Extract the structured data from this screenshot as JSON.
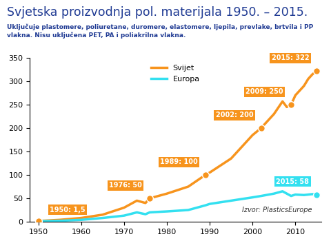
{
  "chart_data": {
    "type": "line",
    "title": "Svjetska proizvodnja pol. materijala 1950. – 2015.",
    "subtitle": "Uključuje plastomere, poliuretane, duromere, elastomere, ljepila, prevlake, brtvila i PP vlakna. Nisu uključena PET, PA i poliakrilna vlakna.",
    "source": "Izvor: PlasticsEurope",
    "x": [
      1950,
      1955,
      1960,
      1965,
      1970,
      1973,
      1975,
      1976,
      1980,
      1985,
      1989,
      1990,
      1995,
      2000,
      2002,
      2005,
      2007,
      2008,
      2009,
      2010,
      2012,
      2013,
      2014,
      2015
    ],
    "series": [
      {
        "name": "Svijet",
        "color": "#f7941d",
        "marker": "none",
        "line_style": "solid",
        "values": [
          1.5,
          4,
          8,
          15,
          30,
          45,
          40,
          50,
          60,
          75,
          100,
          105,
          135,
          185,
          200,
          230,
          257,
          245,
          250,
          270,
          290,
          305,
          315,
          322
        ]
      },
      {
        "name": "Europa",
        "color": "#33e0f0",
        "marker": "none",
        "line_style": "solid",
        "values": [
          1,
          2,
          4,
          8,
          13,
          20,
          16,
          20,
          22,
          25,
          35,
          38,
          45,
          52,
          55,
          60,
          65,
          60,
          55,
          58,
          57,
          58,
          59,
          58
        ]
      }
    ],
    "annotations": [
      {
        "text": "1950: 1,5",
        "x": 1950,
        "y": 1.5,
        "series": "Svijet"
      },
      {
        "text": "1976: 50",
        "x": 1976,
        "y": 50,
        "series": "Svijet"
      },
      {
        "text": "1989: 100",
        "x": 1989,
        "y": 100,
        "series": "Svijet"
      },
      {
        "text": "2002: 200",
        "x": 2002,
        "y": 200,
        "series": "Svijet"
      },
      {
        "text": "2009: 250",
        "x": 2009,
        "y": 250,
        "series": "Svijet"
      },
      {
        "text": "2015: 322",
        "x": 2015,
        "y": 322,
        "series": "Svijet"
      },
      {
        "text": "2015: 58",
        "x": 2015,
        "y": 58,
        "series": "Europa"
      }
    ],
    "xlim": [
      1948,
      2016
    ],
    "xticks": [
      1950,
      1960,
      1970,
      1980,
      1990,
      2000,
      2010
    ],
    "ylim": [
      0,
      350
    ],
    "yticks": [
      0,
      50,
      100,
      150,
      200,
      250,
      300,
      350
    ],
    "grid": false,
    "legend": "upper center"
  }
}
